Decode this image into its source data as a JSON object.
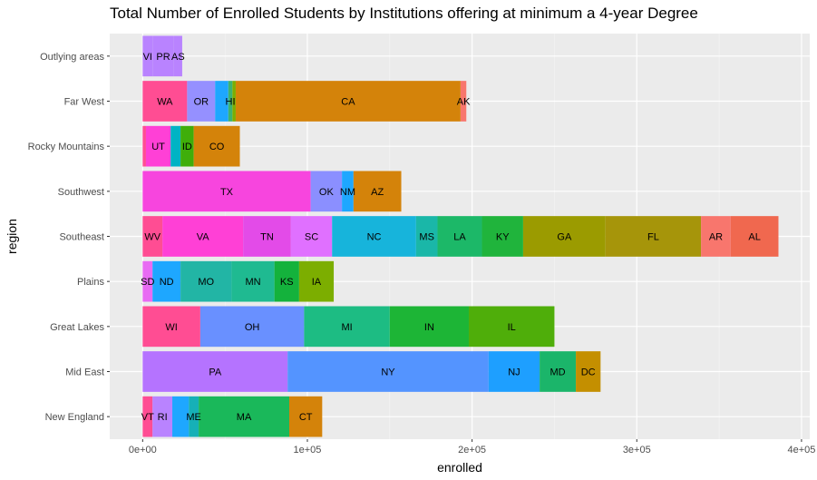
{
  "chart_data": {
    "type": "bar",
    "orientation": "horizontal",
    "stacked": true,
    "title": "Total Number of Enrolled Students by Institutions offering at minimum a 4-year Degree",
    "xlabel": "enrolled",
    "ylabel": "region",
    "xlim": [
      -20000,
      405000
    ],
    "x_ticks": [
      0,
      100000,
      200000,
      300000,
      400000
    ],
    "x_tick_labels": [
      "0e+00",
      "1e+05",
      "2e+05",
      "3e+05",
      "4e+05"
    ],
    "grid": true,
    "categories": [
      "Outlying areas",
      "Far West",
      "Rocky Mountains",
      "Southwest",
      "Southeast",
      "Plains",
      "Great Lakes",
      "Mid East",
      "New England"
    ],
    "bars": [
      {
        "region": "Outlying areas",
        "segments": [
          {
            "label": "VI",
            "value": 6000,
            "color": "#B983FF"
          },
          {
            "label": "PR",
            "value": 13000,
            "color": "#B983FF"
          },
          {
            "label": "AS",
            "value": 5000,
            "color": "#B983FF"
          }
        ]
      },
      {
        "region": "Far West",
        "segments": [
          {
            "label": "WA",
            "value": 27000,
            "color": "#FF4D93"
          },
          {
            "label": "OR",
            "value": 17000,
            "color": "#9590FF"
          },
          {
            "label": "",
            "value": 8000,
            "color": "#1EA7FF"
          },
          {
            "label": "HI",
            "value": 2500,
            "color": "#3CB371"
          },
          {
            "label": "",
            "value": 2000,
            "color": "#7CAE00"
          },
          {
            "label": "CA",
            "value": 136500,
            "color": "#D4830A"
          },
          {
            "label": "AK",
            "value": 3500,
            "color": "#F8766D"
          }
        ]
      },
      {
        "region": "Rocky Mountains",
        "segments": [
          {
            "label": "",
            "value": 2000,
            "color": "#FF4D93"
          },
          {
            "label": "UT",
            "value": 15000,
            "color": "#FF40D6"
          },
          {
            "label": "",
            "value": 6000,
            "color": "#00B3C4"
          },
          {
            "label": "ID",
            "value": 8000,
            "color": "#3FAE0A"
          },
          {
            "label": "CO",
            "value": 28000,
            "color": "#D4830A"
          }
        ]
      },
      {
        "region": "Southwest",
        "segments": [
          {
            "label": "TX",
            "value": 102000,
            "color": "#F745DE"
          },
          {
            "label": "OK",
            "value": 19000,
            "color": "#8B8FFF"
          },
          {
            "label": "NM",
            "value": 7000,
            "color": "#1EA7FF"
          },
          {
            "label": "AZ",
            "value": 29000,
            "color": "#D4830A"
          }
        ]
      },
      {
        "region": "Southeast",
        "segments": [
          {
            "label": "WV",
            "value": 12000,
            "color": "#FF4D93"
          },
          {
            "label": "VA",
            "value": 49000,
            "color": "#FF40D6"
          },
          {
            "label": "TN",
            "value": 29000,
            "color": "#E34BE8"
          },
          {
            "label": "SC",
            "value": 25000,
            "color": "#E070FF"
          },
          {
            "label": "NC",
            "value": 51000,
            "color": "#17B4DB"
          },
          {
            "label": "MS",
            "value": 13000,
            "color": "#1AB7A8"
          },
          {
            "label": "LA",
            "value": 27000,
            "color": "#1CB868"
          },
          {
            "label": "KY",
            "value": 25000,
            "color": "#20B43C"
          },
          {
            "label": "GA",
            "value": 50000,
            "color": "#9B9B00"
          },
          {
            "label": "FL",
            "value": 58000,
            "color": "#A6950A"
          },
          {
            "label": "AR",
            "value": 18000,
            "color": "#F8766D"
          },
          {
            "label": "AL",
            "value": 29000,
            "color": "#F0684F"
          }
        ]
      },
      {
        "region": "Plains",
        "segments": [
          {
            "label": "SD",
            "value": 6000,
            "color": "#E86BF3"
          },
          {
            "label": "ND",
            "value": 17000,
            "color": "#1EA7FF"
          },
          {
            "label": "MO",
            "value": 31000,
            "color": "#22B5A5"
          },
          {
            "label": "MN",
            "value": 26000,
            "color": "#1FBA91"
          },
          {
            "label": "KS",
            "value": 15000,
            "color": "#14B23C"
          },
          {
            "label": "IA",
            "value": 21000,
            "color": "#7CAE00"
          }
        ]
      },
      {
        "region": "Great Lakes",
        "segments": [
          {
            "label": "WI",
            "value": 35000,
            "color": "#FF4D93"
          },
          {
            "label": "OH",
            "value": 63000,
            "color": "#6990FF"
          },
          {
            "label": "MI",
            "value": 52000,
            "color": "#1DBC83"
          },
          {
            "label": "IN",
            "value": 48000,
            "color": "#1DB536"
          },
          {
            "label": "IL",
            "value": 52000,
            "color": "#4FAE0A"
          }
        ]
      },
      {
        "region": "Mid East",
        "segments": [
          {
            "label": "PA",
            "value": 88000,
            "color": "#B573FF"
          },
          {
            "label": "NY",
            "value": 122000,
            "color": "#5494FF"
          },
          {
            "label": "NJ",
            "value": 31000,
            "color": "#1E9FFF"
          },
          {
            "label": "MD",
            "value": 22000,
            "color": "#1BB56A"
          },
          {
            "label": "DC",
            "value": 15000,
            "color": "#C48F00"
          }
        ]
      },
      {
        "region": "New England",
        "segments": [
          {
            "label": "VT",
            "value": 6000,
            "color": "#FF4D93"
          },
          {
            "label": "RI",
            "value": 12000,
            "color": "#B983FF"
          },
          {
            "label": "",
            "value": 10000,
            "color": "#1EA7FF"
          },
          {
            "label": "ME",
            "value": 6000,
            "color": "#16B0B7"
          },
          {
            "label": "MA",
            "value": 55000,
            "color": "#1AB85A"
          },
          {
            "label": "CT",
            "value": 20000,
            "color": "#D4830A"
          }
        ]
      }
    ]
  }
}
